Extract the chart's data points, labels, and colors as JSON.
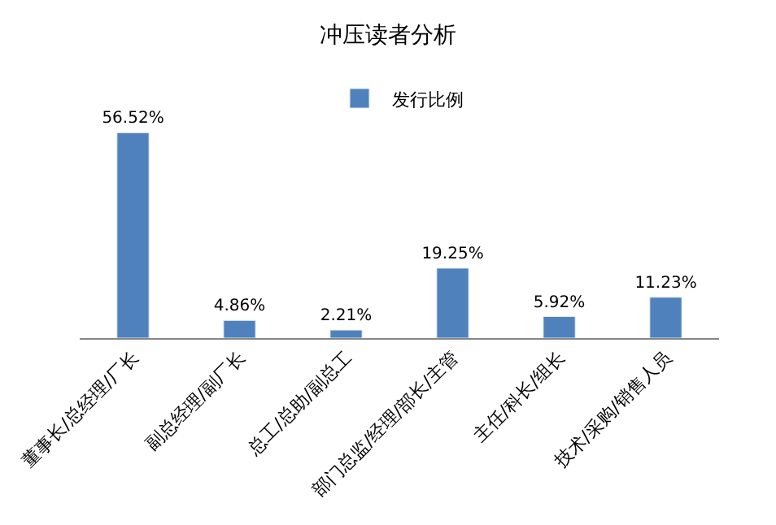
{
  "chart_data": {
    "type": "bar",
    "title": "冲压读者分析",
    "categories": [
      "董事长/总经理/厂长",
      "副总经理/副厂长",
      "总工/总助/副总工",
      "部门总监/经理/部长/主管",
      "主任/科长/组长",
      "技术/采购/销售人员"
    ],
    "series": [
      {
        "name": "发行比例",
        "color": "#4f81bd",
        "values": [
          56.52,
          4.86,
          2.21,
          19.25,
          5.92,
          11.23
        ],
        "value_labels": [
          "56.52%",
          "4.86%",
          "2.21%",
          "19.25%",
          "5.92%",
          "11.23%"
        ]
      }
    ],
    "legend": "top"
  }
}
